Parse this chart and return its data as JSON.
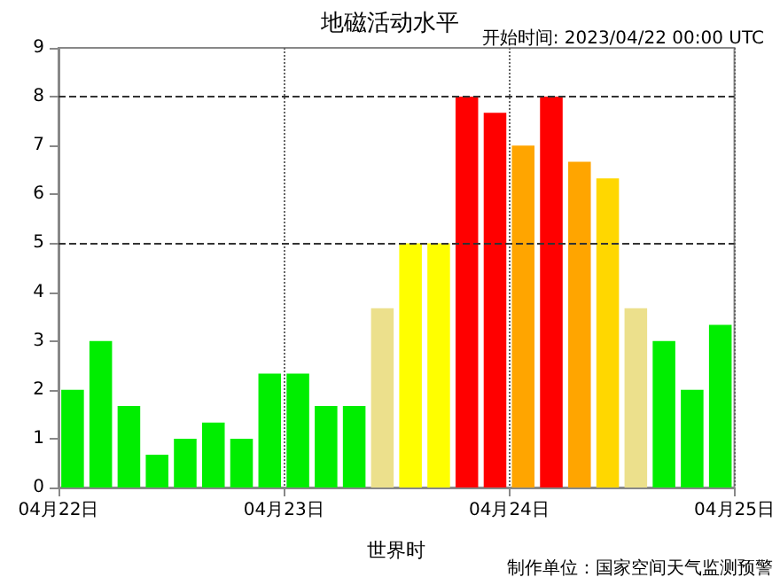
{
  "chart_data": {
    "type": "bar",
    "title": "地磁活动水平",
    "subtitle": "开始时间: 2023/04/22 00:00 UTC",
    "xlabel": "世界时",
    "annotations": [
      "制作单位：国家空间天气监测预警"
    ],
    "x": [
      "2023-04-22T01:30",
      "2023-04-22T04:30",
      "2023-04-22T07:30",
      "2023-04-22T10:30",
      "2023-04-22T13:30",
      "2023-04-22T16:30",
      "2023-04-22T19:30",
      "2023-04-22T22:30",
      "2023-04-23T01:30",
      "2023-04-23T04:30",
      "2023-04-23T07:30",
      "2023-04-23T10:30",
      "2023-04-23T13:30",
      "2023-04-23T16:30",
      "2023-04-23T19:30",
      "2023-04-23T22:30",
      "2023-04-24T01:30",
      "2023-04-24T04:30",
      "2023-04-24T07:30",
      "2023-04-24T10:30",
      "2023-04-24T13:30",
      "2023-04-24T16:30",
      "2023-04-24T19:30",
      "2023-04-24T22:30"
    ],
    "values": [
      2,
      3,
      1.67,
      0.67,
      1,
      1.33,
      1,
      2.33,
      2.33,
      1.67,
      1.67,
      3.67,
      5,
      5,
      8,
      7.67,
      7,
      8,
      6.67,
      6.33,
      3.67,
      3,
      2,
      3.33
    ],
    "colors": [
      "#00ee00",
      "#00ee00",
      "#00ee00",
      "#00ee00",
      "#00ee00",
      "#00ee00",
      "#00ee00",
      "#00ee00",
      "#00ee00",
      "#00ee00",
      "#00ee00",
      "#ece08c",
      "#ffff00",
      "#ffff00",
      "#ff0000",
      "#ff0000",
      "#ffa500",
      "#ff0000",
      "#ffa500",
      "#ffd700",
      "#ece08c",
      "#00ee00",
      "#00ee00",
      "#00ee00"
    ],
    "xlim": [
      "2023-04-22",
      "2023-04-25"
    ],
    "xticks": [
      {
        "value": "2023-04-22",
        "label": "04月22日"
      },
      {
        "value": "2023-04-23",
        "label": "04月23日"
      },
      {
        "value": "2023-04-24",
        "label": "04月24日"
      },
      {
        "value": "2023-04-25",
        "label": "04月25日"
      }
    ],
    "ylim": [
      0,
      9
    ],
    "yticks": [
      0,
      1,
      2,
      3,
      4,
      5,
      6,
      7,
      8,
      9
    ],
    "grid": "x",
    "ref_lines": [
      {
        "axis": "y",
        "value": 5,
        "line_style": "dashed",
        "color": "#333333"
      },
      {
        "axis": "y",
        "value": 8,
        "line_style": "dashed",
        "color": "#333333"
      }
    ]
  }
}
